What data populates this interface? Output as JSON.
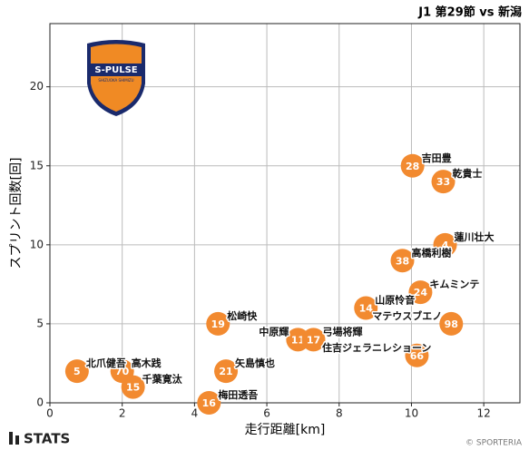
{
  "chart_data": {
    "type": "scatter",
    "title": "J1 第29節 vs 新潟",
    "xlabel": "走行距離[km]",
    "ylabel": "スプリント回数[回]",
    "xlim": [
      0,
      13
    ],
    "ylim": [
      0,
      24
    ],
    "xticks": [
      0,
      2,
      4,
      6,
      8,
      10,
      12
    ],
    "yticks": [
      0,
      5,
      10,
      15,
      20
    ],
    "grid": true,
    "color": "#f28a30",
    "points": [
      {
        "number": "5",
        "name": "北爪健吾",
        "x": 0.75,
        "y": 2
      },
      {
        "number": "70",
        "name": "高木践",
        "x": 2.0,
        "y": 2
      },
      {
        "number": "15",
        "name": "千葉寛汰",
        "x": 2.3,
        "y": 1
      },
      {
        "number": "16",
        "name": "梅田透吾",
        "x": 4.4,
        "y": 0
      },
      {
        "number": "21",
        "name": "矢島慎也",
        "x": 4.87,
        "y": 2
      },
      {
        "number": "19",
        "name": "松崎快",
        "x": 4.65,
        "y": 5
      },
      {
        "number": "11",
        "name": "中原輝",
        "x": 6.86,
        "y": 4
      },
      {
        "number": "17",
        "name": "弓場将輝",
        "x": 7.29,
        "y": 4
      },
      {
        "number": "14",
        "name": "山原怜音",
        "x": 8.74,
        "y": 6
      },
      {
        "number": "66",
        "name": "住吉ジェラニレショーン",
        "x": 10.15,
        "y": 3
      },
      {
        "number": "98",
        "name": "マテウスブエノ",
        "x": 11.1,
        "y": 5
      },
      {
        "number": "24",
        "name": "キムミンテ",
        "x": 10.25,
        "y": 7
      },
      {
        "number": "38",
        "name": "高橋利樹",
        "x": 9.75,
        "y": 9
      },
      {
        "number": "4",
        "name": "蓮川壮大",
        "x": 10.93,
        "y": 10
      },
      {
        "number": "33",
        "name": "乾貴士",
        "x": 10.88,
        "y": 14
      },
      {
        "number": "28",
        "name": "吉田豊",
        "x": 10.03,
        "y": 15
      }
    ],
    "logo": {
      "name": "S-PULSE",
      "sub": "SHIZUOKA SHIMIZU"
    },
    "brand": "STATS",
    "credit": "© SPORTERIA"
  }
}
